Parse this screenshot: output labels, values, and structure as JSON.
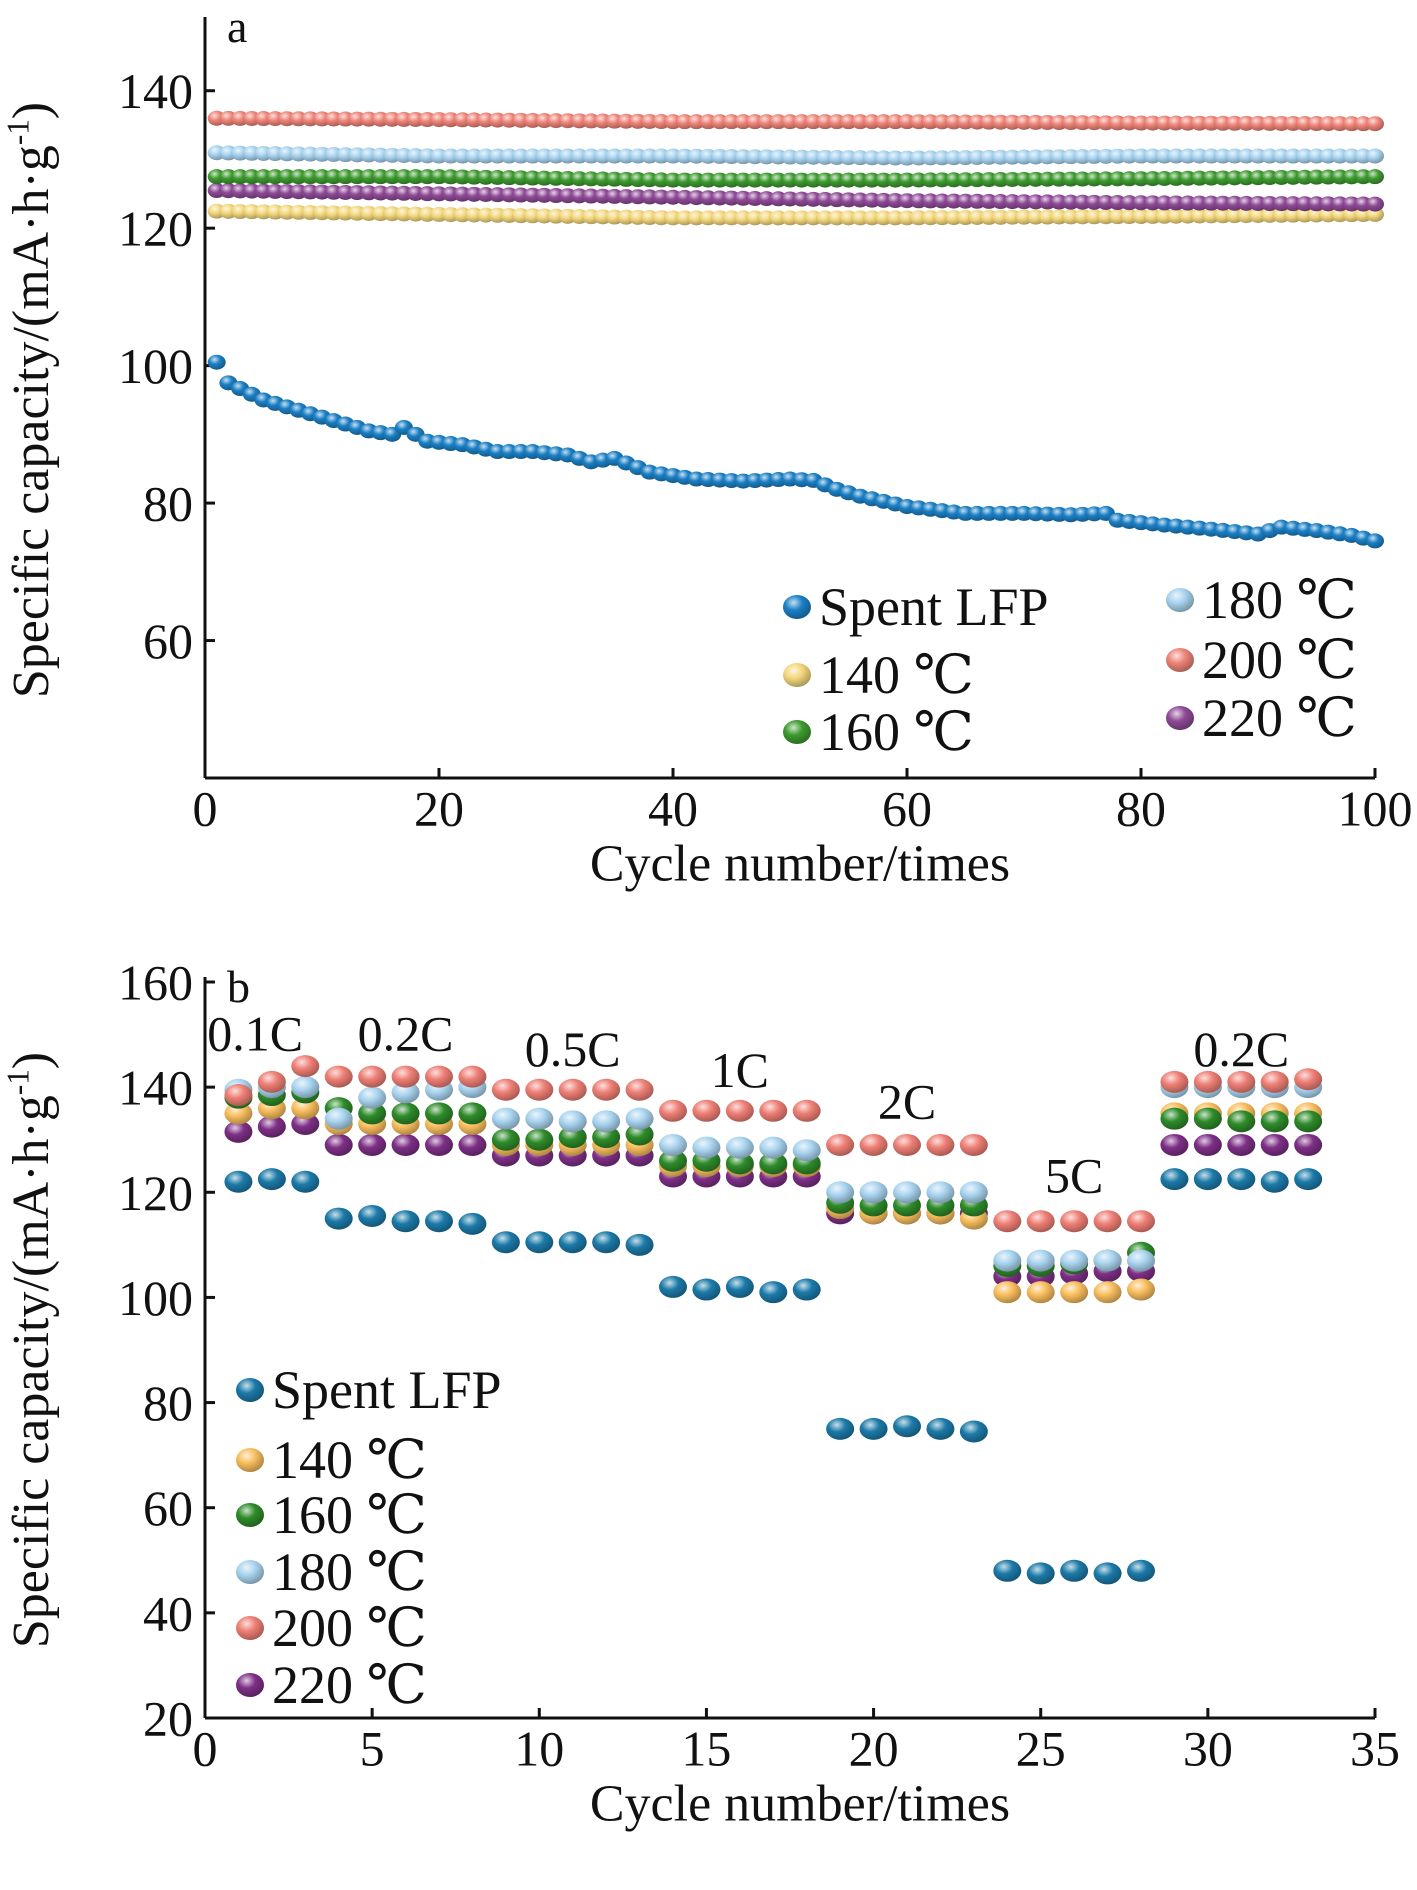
{
  "chart_data": [
    {
      "type": "scatter",
      "panel_label": "a",
      "xlabel": "Cycle number/times",
      "ylabel": "Specific capacity/(mA·h·g-1)",
      "xlim": [
        0,
        100
      ],
      "ylim": [
        40,
        150
      ],
      "xticks": [
        0,
        20,
        40,
        60,
        80,
        100
      ],
      "yticks": [
        60,
        80,
        100,
        120,
        140
      ],
      "legend_placement": "bottom-right",
      "series": [
        {
          "name": "Spent LFP",
          "color": "#1b7fc4",
          "points": [
            [
              1,
              100.5
            ],
            [
              2,
              97.5
            ],
            [
              5,
              95
            ],
            [
              8,
              93.5
            ],
            [
              11,
              92
            ],
            [
              14,
              90.5
            ],
            [
              16,
              90
            ],
            [
              17,
              91
            ],
            [
              19,
              89
            ],
            [
              22,
              88.5
            ],
            [
              25,
              87.5
            ],
            [
              28,
              87.5
            ],
            [
              31,
              87
            ],
            [
              33,
              86
            ],
            [
              35,
              86.5
            ],
            [
              38,
              84.5
            ],
            [
              42,
              83.5
            ],
            [
              46,
              83.2
            ],
            [
              50,
              83.5
            ],
            [
              52,
              83.3
            ],
            [
              54,
              82
            ],
            [
              56,
              81
            ],
            [
              60,
              79.5
            ],
            [
              65,
              78.5
            ],
            [
              70,
              78.5
            ],
            [
              74,
              78.3
            ],
            [
              77,
              78.5
            ],
            [
              78,
              77.5
            ],
            [
              82,
              76.8
            ],
            [
              86,
              76.2
            ],
            [
              90,
              75.5
            ],
            [
              92,
              76.5
            ],
            [
              95,
              76
            ],
            [
              98,
              75.3
            ],
            [
              100,
              74.5
            ]
          ]
        },
        {
          "name": "140 ℃",
          "color": "#f3d77c",
          "points": [
            [
              0,
              122.5
            ],
            [
              20,
              122
            ],
            [
              40,
              121.5
            ],
            [
              60,
              121.5
            ],
            [
              80,
              121.7
            ],
            [
              100,
              122
            ]
          ]
        },
        {
          "name": "160 ℃",
          "color": "#3d9a2f",
          "points": [
            [
              0,
              127.5
            ],
            [
              20,
              127.5
            ],
            [
              40,
              127
            ],
            [
              60,
              127
            ],
            [
              80,
              127.2
            ],
            [
              100,
              127.5
            ]
          ]
        },
        {
          "name": "180 ℃",
          "color": "#a8d3ef",
          "points": [
            [
              0,
              131
            ],
            [
              20,
              130.5
            ],
            [
              40,
              130.5
            ],
            [
              60,
              130.2
            ],
            [
              80,
              130.5
            ],
            [
              100,
              130.5
            ]
          ]
        },
        {
          "name": "200 ℃",
          "color": "#ee8478",
          "points": [
            [
              0,
              136
            ],
            [
              20,
              135.8
            ],
            [
              40,
              135.5
            ],
            [
              60,
              135.5
            ],
            [
              80,
              135.3
            ],
            [
              100,
              135.2
            ]
          ]
        },
        {
          "name": "220 ℃",
          "color": "#8e4a96",
          "points": [
            [
              0,
              125.5
            ],
            [
              20,
              125
            ],
            [
              40,
              124.5
            ],
            [
              60,
              124
            ],
            [
              80,
              123.7
            ],
            [
              100,
              123.5
            ]
          ]
        }
      ]
    },
    {
      "type": "scatter",
      "panel_label": "b",
      "xlabel": "Cycle number/times",
      "ylabel": "Specific capacity/(mA·h·g-1)",
      "xlim": [
        0,
        35
      ],
      "ylim": [
        20,
        160
      ],
      "xticks": [
        0,
        5,
        10,
        15,
        20,
        25,
        30,
        35
      ],
      "yticks": [
        20,
        40,
        60,
        80,
        100,
        120,
        140,
        160
      ],
      "legend_placement": "bottom-left",
      "rate_labels": [
        {
          "text": "0.1C",
          "x": 1.5,
          "y": 147
        },
        {
          "text": "0.2C",
          "x": 6,
          "y": 147
        },
        {
          "text": "0.5C",
          "x": 11,
          "y": 144
        },
        {
          "text": "1C",
          "x": 16,
          "y": 140
        },
        {
          "text": "2C",
          "x": 21,
          "y": 134
        },
        {
          "text": "5C",
          "x": 26,
          "y": 120
        },
        {
          "text": "0.2C",
          "x": 31,
          "y": 144
        }
      ],
      "series": [
        {
          "name": "Spent LFP",
          "color": "#1c7aa8",
          "x": [
            1,
            2,
            3,
            4,
            5,
            6,
            7,
            8,
            9,
            10,
            11,
            12,
            13,
            14,
            15,
            16,
            17,
            18,
            19,
            20,
            21,
            22,
            23,
            24,
            25,
            26,
            27,
            28,
            29,
            30,
            31,
            32,
            33
          ],
          "y": [
            122,
            122.5,
            122,
            115,
            115.5,
            114.5,
            114.5,
            114,
            110.5,
            110.5,
            110.5,
            110.5,
            110,
            102,
            101.5,
            102,
            101,
            101.5,
            75,
            75,
            75.5,
            75,
            74.5,
            48,
            47.5,
            48,
            47.5,
            48,
            122.5,
            122.5,
            122.5,
            122,
            122.5
          ]
        },
        {
          "name": "140 ℃",
          "color": "#f8be5e",
          "x": [
            1,
            2,
            3,
            4,
            5,
            6,
            7,
            8,
            9,
            10,
            11,
            12,
            13,
            14,
            15,
            16,
            17,
            18,
            19,
            20,
            21,
            22,
            23,
            24,
            25,
            26,
            27,
            28,
            29,
            30,
            31,
            32,
            33
          ],
          "y": [
            135,
            136,
            136,
            133,
            133,
            133,
            133,
            133,
            129,
            129,
            129,
            129,
            129,
            125,
            125,
            125,
            125,
            125,
            117,
            116,
            116,
            116,
            115,
            101,
            101,
            101,
            101,
            101.5,
            135,
            135,
            135,
            135,
            135
          ]
        },
        {
          "name": "160 ℃",
          "color": "#2e8b2a",
          "x": [
            1,
            2,
            3,
            4,
            5,
            6,
            7,
            8,
            9,
            10,
            11,
            12,
            13,
            14,
            15,
            16,
            17,
            18,
            19,
            20,
            21,
            22,
            23,
            24,
            25,
            26,
            27,
            28,
            29,
            30,
            31,
            32,
            33
          ],
          "y": [
            138,
            138.5,
            139,
            136,
            135,
            135,
            135,
            135,
            130,
            130,
            130.5,
            130.5,
            131,
            126,
            126,
            125.5,
            125.5,
            125.5,
            118,
            117.5,
            117.5,
            117.5,
            117.5,
            106,
            106,
            106.5,
            107,
            108.5,
            134,
            134,
            133.5,
            133.5,
            133.5
          ]
        },
        {
          "name": "180 ℃",
          "color": "#a9d4ef",
          "x": [
            1,
            2,
            3,
            4,
            5,
            6,
            7,
            8,
            9,
            10,
            11,
            12,
            13,
            14,
            15,
            16,
            17,
            18,
            19,
            20,
            21,
            22,
            23,
            24,
            25,
            26,
            27,
            28,
            29,
            30,
            31,
            32,
            33
          ],
          "y": [
            139.5,
            140,
            140,
            134,
            138,
            139,
            139.5,
            140,
            134,
            134,
            133.5,
            133.5,
            134,
            129,
            128.5,
            128.5,
            128.5,
            128,
            120,
            120,
            120,
            120,
            120,
            107,
            107,
            107,
            107,
            107,
            140,
            140,
            140,
            140,
            140
          ]
        },
        {
          "name": "200 ℃",
          "color": "#ee7f75",
          "x": [
            1,
            2,
            3,
            4,
            5,
            6,
            7,
            8,
            9,
            10,
            11,
            12,
            13,
            14,
            15,
            16,
            17,
            18,
            19,
            20,
            21,
            22,
            23,
            24,
            25,
            26,
            27,
            28,
            29,
            30,
            31,
            32,
            33
          ],
          "y": [
            138.5,
            141,
            144,
            142,
            142,
            142,
            142,
            142,
            139.5,
            139.5,
            139.5,
            139.5,
            139.5,
            135.5,
            135.5,
            135.5,
            135.5,
            135.5,
            129,
            129,
            129,
            129,
            129,
            114.5,
            114.5,
            114.5,
            114.5,
            114.5,
            141,
            141,
            141,
            141,
            141.5
          ]
        },
        {
          "name": "220 ℃",
          "color": "#7e2f86",
          "x": [
            1,
            2,
            3,
            4,
            5,
            6,
            7,
            8,
            9,
            10,
            11,
            12,
            13,
            14,
            15,
            16,
            17,
            18,
            19,
            20,
            21,
            22,
            23,
            24,
            25,
            26,
            27,
            28,
            29,
            30,
            31,
            32,
            33
          ],
          "y": [
            131.5,
            132.5,
            133,
            129,
            129,
            129,
            129,
            129,
            127,
            127,
            127,
            127,
            127,
            123,
            123,
            123,
            123,
            123,
            116,
            116,
            116,
            116,
            116,
            104,
            104,
            104.5,
            105,
            105,
            129,
            129,
            129,
            129,
            129
          ]
        }
      ]
    }
  ]
}
